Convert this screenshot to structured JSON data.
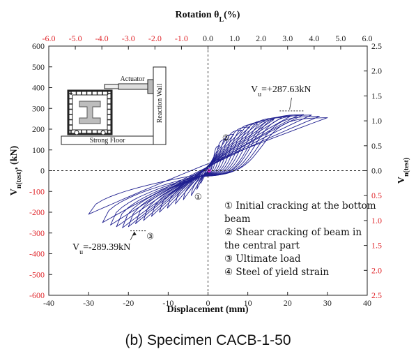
{
  "chart_data": {
    "type": "line",
    "title": "",
    "top_axis": {
      "label": "Rotation θL(%)",
      "label_main": "Rotation θ",
      "label_sub": "L",
      "label_tail": "(%)",
      "range": [
        -6.0,
        6.0
      ],
      "ticks": [
        "-6.0",
        "-5.0",
        "-4.0",
        "-3.0",
        "-2.0",
        "-1.0",
        "0.0",
        "1.0",
        "2.0",
        "3.0",
        "4.0",
        "5.0",
        "6.0"
      ],
      "tick_color": "#e0282d"
    },
    "bottom_axis": {
      "label": "Displacement (mm)",
      "range": [
        -40,
        40
      ],
      "ticks": [
        "-40",
        "-30",
        "-20",
        "-10",
        "0",
        "10",
        "20",
        "30",
        "40"
      ]
    },
    "left_axis": {
      "label": "Vn(test), (kN)",
      "label_main": "V",
      "label_sub": "n(test)",
      "label_tail": ", (kN)",
      "range": [
        -600,
        600
      ],
      "ticks": [
        "600",
        "500",
        "400",
        "300",
        "200",
        "100",
        "0",
        "-100",
        "-200",
        "-300",
        "-400",
        "-500",
        "-600"
      ],
      "negative_tick_color": "#e0282d"
    },
    "right_axis": {
      "label": "Vn(test)",
      "label_main": "V",
      "label_sub": "n(test)",
      "range": [
        -2.5,
        2.5
      ],
      "ticks": [
        "2.5",
        "2.0",
        "1.5",
        "1.0",
        "0.5",
        "0.0",
        "0.5",
        "1.0",
        "1.5",
        "2.0",
        "2.5"
      ],
      "negative_tick_color": "#e0282d"
    },
    "hysteresis": {
      "color": "#1f1f8f",
      "cycles": [
        {
          "max_disp": 2.0,
          "max_load": 60,
          "min_disp": -1.8,
          "min_load": -60
        },
        {
          "max_disp": 3.0,
          "max_load": 120,
          "min_disp": -2.8,
          "min_load": -90
        },
        {
          "max_disp": 4.5,
          "max_load": 150,
          "min_disp": -4.2,
          "min_load": -120
        },
        {
          "max_disp": 6.5,
          "max_load": 175,
          "min_disp": -6.2,
          "min_load": -140
        },
        {
          "max_disp": 8.5,
          "max_load": 195,
          "min_disp": -8.2,
          "min_load": -160
        },
        {
          "max_disp": 10.5,
          "max_load": 210,
          "min_disp": -10.2,
          "min_load": -180
        },
        {
          "max_disp": 12.5,
          "max_load": 225,
          "min_disp": -12.2,
          "min_load": -200
        },
        {
          "max_disp": 14.5,
          "max_load": 235,
          "min_disp": -14.2,
          "min_load": -220
        },
        {
          "max_disp": 16.5,
          "max_load": 245,
          "min_disp": -16.2,
          "min_load": -240
        },
        {
          "max_disp": 18.5,
          "max_load": 255,
          "min_disp": -18.2,
          "min_load": -255
        },
        {
          "max_disp": 20.5,
          "max_load": 260,
          "min_disp": -20.0,
          "min_load": -270
        },
        {
          "max_disp": 22.5,
          "max_load": 265,
          "min_disp": -21.5,
          "min_load": -275
        },
        {
          "max_disp": 24.0,
          "max_load": 270,
          "min_disp": -23.0,
          "min_load": -270
        },
        {
          "max_disp": 26.0,
          "max_load": 268,
          "min_disp": -24.5,
          "min_load": -262
        },
        {
          "max_disp": 28.0,
          "max_load": 262,
          "min_disp": -26.5,
          "min_load": -250
        },
        {
          "max_disp": 30.0,
          "max_load": 255,
          "min_disp": -30.0,
          "min_load": -210
        }
      ]
    },
    "annotations": {
      "vu_pos": {
        "main": "V",
        "sub": "u",
        "text": "=+287.63kN",
        "x": 20.5,
        "y": 287.63
      },
      "vu_neg": {
        "main": "V",
        "sub": "u",
        "text": "=-289.39kN",
        "x": -17.5,
        "y": -289.39
      },
      "markers": [
        {
          "symbol": "①",
          "x": -2.5,
          "y": -140
        },
        {
          "symbol": "②",
          "x": 4.5,
          "y": 145
        },
        {
          "symbol": "③",
          "x": -14.5,
          "y": -330
        }
      ],
      "magenta_point": {
        "x": 0.3,
        "y": 0,
        "color": "#d62fd6"
      }
    },
    "legend": {
      "placement": "bottom-right",
      "lines": [
        "① Initial cracking at the bottom",
        "beam",
        "② Shear cracking of beam in",
        "the central part",
        "③ Ultimate load",
        "④ Steel of yield strain"
      ]
    },
    "inset": {
      "labels": {
        "actuator": "Actuator",
        "wall": "Reaction Wall",
        "floor": "Strong Floor"
      }
    },
    "grid": false,
    "reference_lines": "dashed lines at x=0 and y=0"
  },
  "caption": "(b)  Specimen  CACB-1-50"
}
